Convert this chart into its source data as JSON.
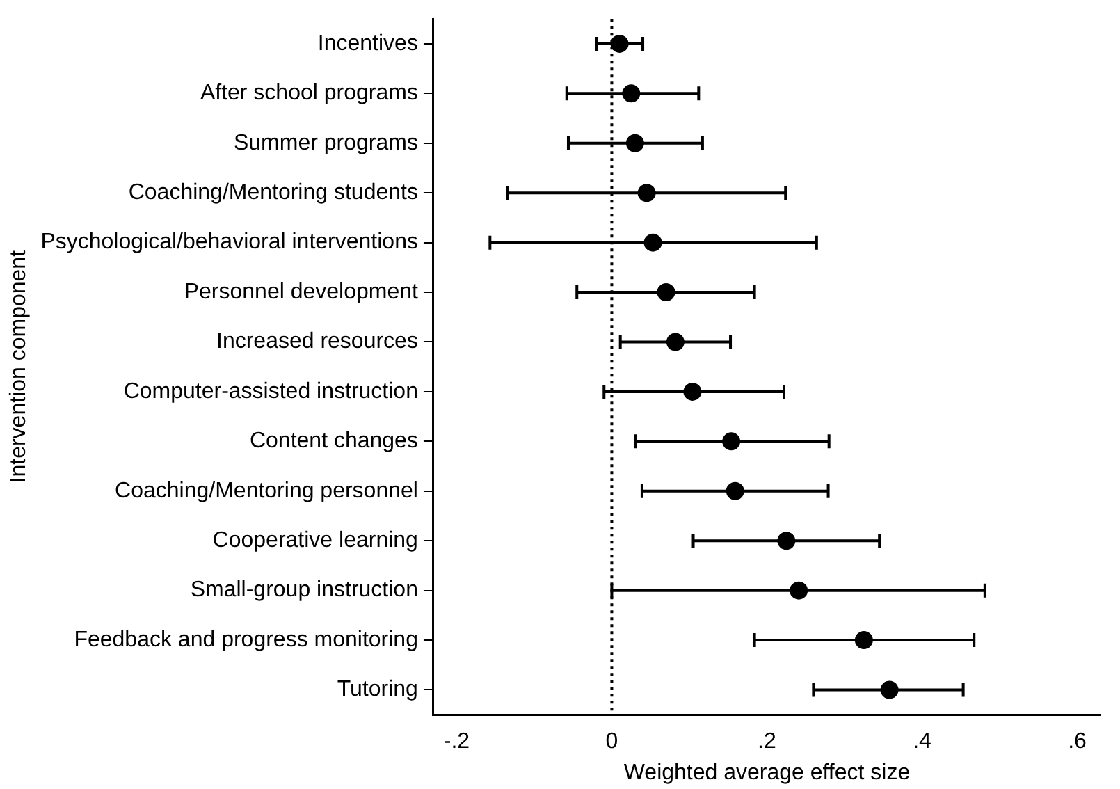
{
  "chart_data": {
    "type": "scatter",
    "orientation": "horizontal",
    "xlabel": "Weighted average effect size",
    "ylabel": "Intervention component",
    "categories": [
      "Incentives",
      "After school programs",
      "Summer programs",
      "Coaching/Mentoring students",
      "Psychological/behavioral interventions",
      "Personnel development",
      "Increased resources",
      "Computer-assisted instruction",
      "Content changes",
      "Coaching/Mentoring personnel",
      "Cooperative learning",
      "Small-group instruction",
      "Feedback and progress monitoring",
      "Tutoring"
    ],
    "values": [
      0.01,
      0.025,
      0.03,
      0.045,
      0.053,
      0.07,
      0.082,
      0.104,
      0.154,
      0.159,
      0.225,
      0.241,
      0.325,
      0.358
    ],
    "errors": [
      [
        -0.02,
        0.04
      ],
      [
        -0.058,
        0.112
      ],
      [
        -0.056,
        0.117
      ],
      [
        -0.134,
        0.224
      ],
      [
        -0.157,
        0.264
      ],
      [
        -0.045,
        0.184
      ],
      [
        0.011,
        0.153
      ],
      [
        -0.01,
        0.222
      ],
      [
        0.031,
        0.28
      ],
      [
        0.039,
        0.279
      ],
      [
        0.105,
        0.345
      ],
      [
        0,
        0.481
      ],
      [
        0.184,
        0.467
      ],
      [
        0.26,
        0.453
      ]
    ],
    "color": "#000000",
    "marker": "circle",
    "xlim": [
      -0.23,
      0.63
    ],
    "xticks": [
      {
        "value": -0.2,
        "label": "-.2"
      },
      0,
      {
        "value": 0.2,
        "label": ".2"
      },
      {
        "value": 0.4,
        "label": ".4"
      },
      {
        "value": 0.6,
        "label": ".6"
      }
    ],
    "ref_lines": [
      {
        "axis": "x",
        "value": 0,
        "line_style": "dotted",
        "color": "#000000"
      }
    ],
    "grid": false,
    "legend": false
  }
}
